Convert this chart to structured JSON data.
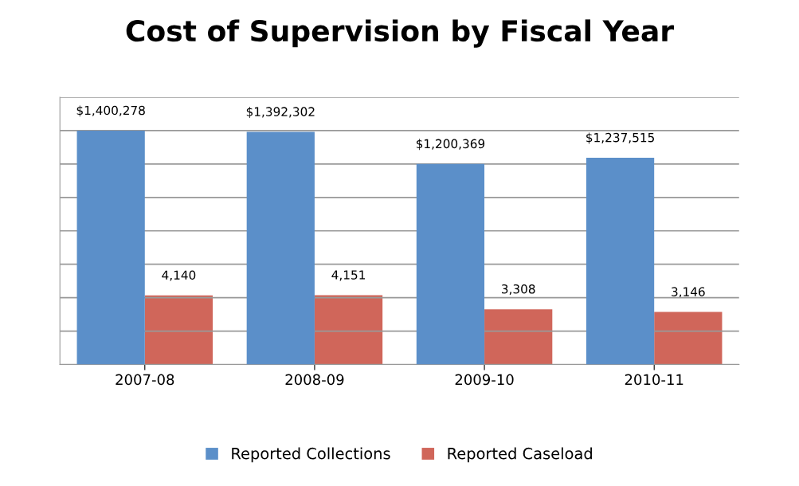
{
  "chart_data": {
    "type": "bar",
    "title": "Cost of Supervision by Fiscal Year",
    "categories": [
      "2007-08",
      "2008-09",
      "2009-10",
      "2010-11"
    ],
    "series": [
      {
        "name": "Reported Collections",
        "color": "#5b8fc9",
        "values": [
          1400278,
          1392302,
          1200369,
          1237515
        ],
        "value_labels": [
          "$1,400,278",
          "$1,392,302",
          "$1,200,369",
          "$1,237,515"
        ]
      },
      {
        "name": "Reported Caseload",
        "color": "#d0665a",
        "axis": "y2",
        "values": [
          4140,
          4151,
          3308,
          3146
        ],
        "value_labels": [
          "4,140",
          "4,151",
          "3,308",
          "3,146"
        ]
      }
    ],
    "ylim": [
      0,
      1600000
    ],
    "yticks": [
      0,
      200000,
      400000,
      600000,
      800000,
      1000000,
      1200000,
      1400000,
      1600000
    ],
    "y2lim": [
      0,
      16000
    ],
    "tick_labels": "x",
    "grid": "y",
    "legend": "bottom"
  }
}
